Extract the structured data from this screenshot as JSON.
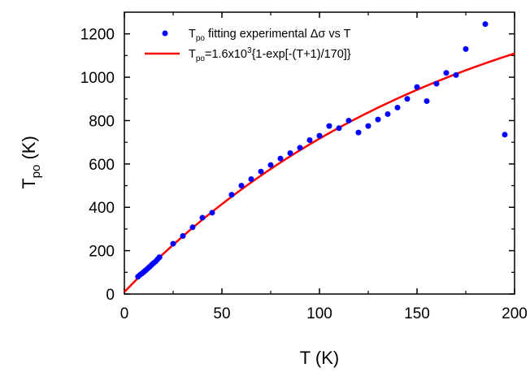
{
  "chart_data": {
    "type": "scatter",
    "title": "",
    "xlabel": "T (K)",
    "ylabel_main": "T",
    "ylabel_sub": "po",
    "ylabel_unit": " (K)",
    "xlim": [
      0,
      200
    ],
    "ylim": [
      0,
      1300
    ],
    "xticks": [
      0,
      50,
      100,
      150,
      200
    ],
    "yticks": [
      0,
      200,
      400,
      600,
      800,
      1000,
      1200
    ],
    "grid": false,
    "legend_position": "top-left",
    "colors": {
      "points": "#0000ff",
      "fit": "#ff0000",
      "axis": "#000000"
    },
    "series": [
      {
        "kind": "points",
        "legend": {
          "main": "T",
          "sub": "po",
          "rest": " fitting experimental Δσ vs T"
        },
        "x": [
          7,
          8,
          9,
          10,
          11,
          12,
          13,
          14,
          15,
          16,
          17,
          18,
          25,
          30,
          35,
          40,
          45,
          55,
          60,
          65,
          70,
          75,
          80,
          85,
          90,
          95,
          100,
          105,
          110,
          115,
          120,
          125,
          130,
          135,
          140,
          145,
          150,
          155,
          160,
          165,
          170,
          175,
          185,
          195
        ],
        "y": [
          80,
          88,
          95,
          102,
          110,
          118,
          126,
          135,
          143,
          150,
          160,
          170,
          232,
          268,
          308,
          352,
          375,
          458,
          500,
          530,
          565,
          595,
          625,
          650,
          675,
          710,
          730,
          775,
          765,
          800,
          745,
          775,
          805,
          830,
          860,
          900,
          955,
          890,
          970,
          1020,
          1010,
          1130,
          1245,
          735
        ]
      },
      {
        "kind": "fit",
        "legend": {
          "main": "T",
          "sub": "po",
          "rest": "=1.6x10",
          "sup": "3",
          "rest2": "{1-exp[-(T+1)/170]}"
        },
        "formula": {
          "a": 1600,
          "offset": 1,
          "tau": 170
        }
      }
    ]
  }
}
